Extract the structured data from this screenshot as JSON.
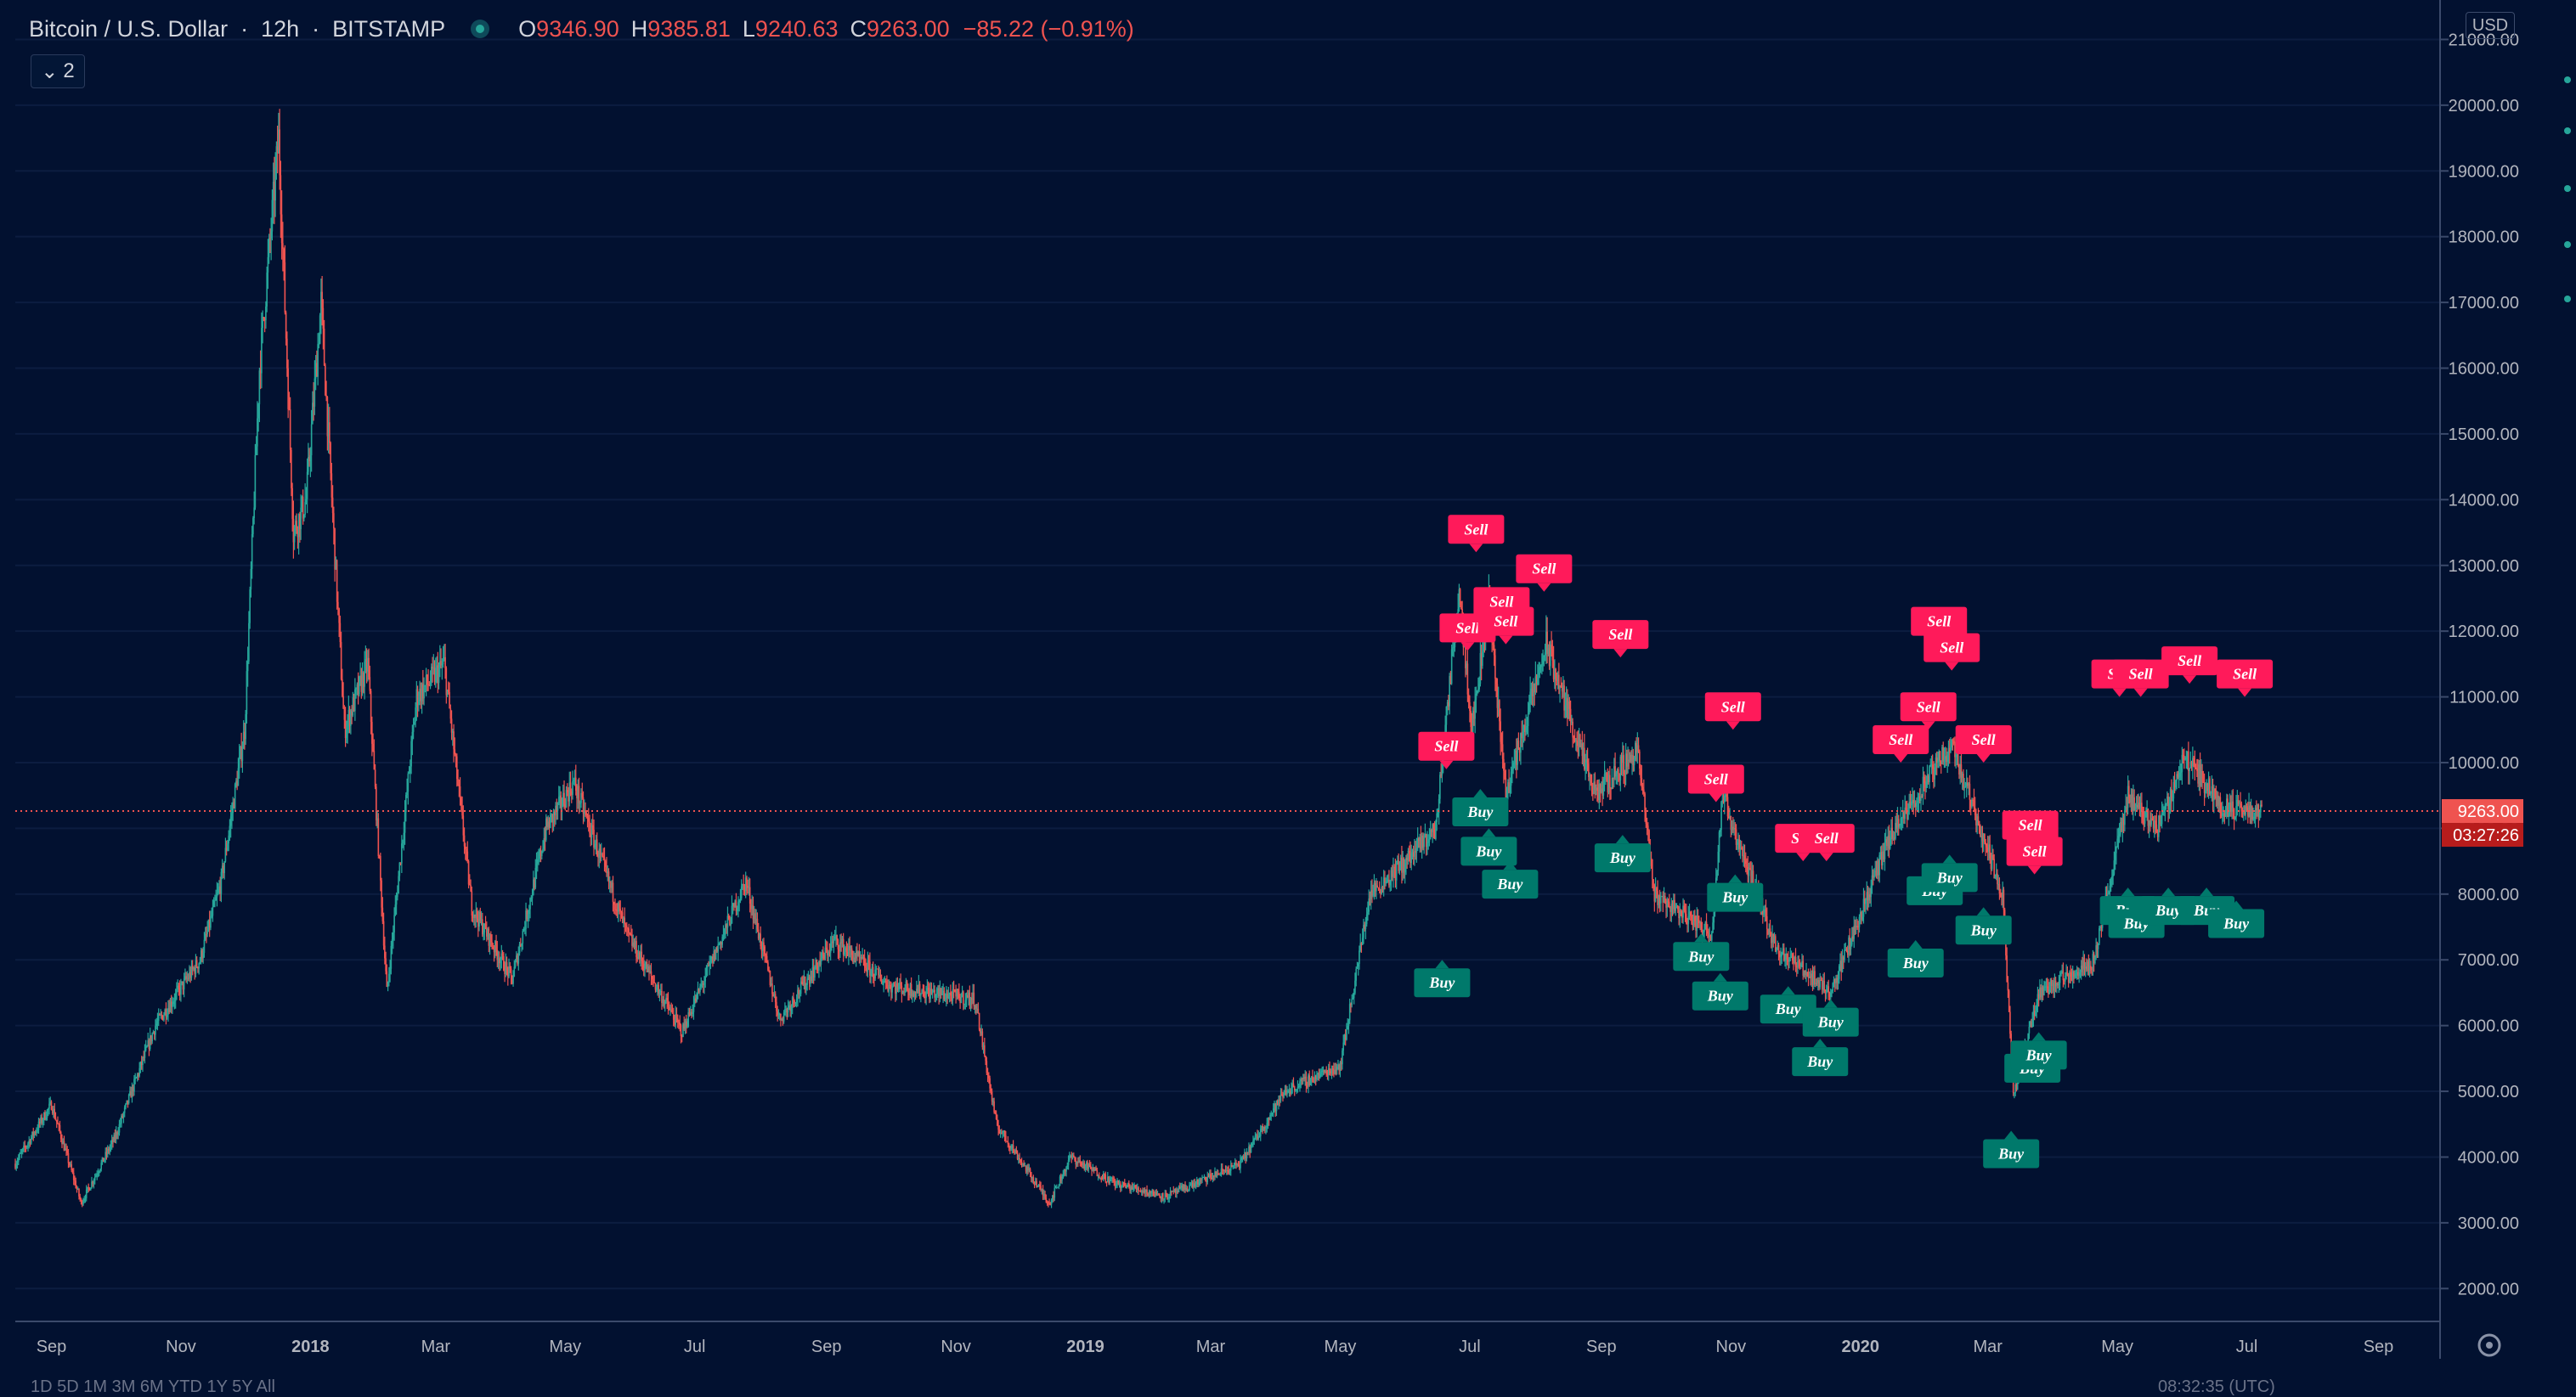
{
  "header": {
    "symbol": "Bitcoin / U.S. Dollar",
    "interval": "12h",
    "exchange": "BITSTAMP",
    "open_label": "O",
    "open": "9346.90",
    "high_label": "H",
    "high": "9385.81",
    "low_label": "L",
    "low": "9240.63",
    "close_label": "C",
    "close": "9263.00",
    "change": "−85.22 (−0.91%)"
  },
  "studies_toggle": {
    "icon": "chevron-down-icon",
    "count": "2"
  },
  "currency": "USD",
  "price_axis": {
    "ticks": [
      "21000.00",
      "20000.00",
      "19000.00",
      "18000.00",
      "17000.00",
      "16000.00",
      "15000.00",
      "14000.00",
      "13000.00",
      "12000.00",
      "11000.00",
      "10000.00",
      "9000.00",
      "8000.00",
      "7000.00",
      "6000.00",
      "5000.00",
      "4000.00",
      "3000.00",
      "2000.00"
    ],
    "last_price": "9263.00",
    "countdown": "03:27:26"
  },
  "time_axis": {
    "ticks": [
      "Sep",
      "Nov",
      "2018",
      "Mar",
      "May",
      "Jul",
      "Sep",
      "Nov",
      "2019",
      "Mar",
      "May",
      "Jul",
      "Sep",
      "Nov",
      "2020",
      "Mar",
      "May",
      "Jul",
      "Sep"
    ],
    "bold_ticks": [
      "2018",
      "2019",
      "2020"
    ]
  },
  "bottom_toolbar": "1D  5D  1M  3M  6M  YTD  1Y  5Y  All",
  "clock": "08:32:35 (UTC)",
  "colors": {
    "up": "#26a69a",
    "down": "#ef5350",
    "background": "#021130",
    "sell": "#ff1a5a",
    "buy": "#00796b",
    "price_line": "#ef5350"
  },
  "chart_data": {
    "type": "candlestick",
    "title": "Bitcoin / U.S. Dollar",
    "interval": "12h",
    "ylim": [
      1500,
      21600
    ],
    "x_range": [
      "2017-08-15",
      "2020-09-30"
    ],
    "path": [
      [
        "2017-08-15",
        3900
      ],
      [
        "2017-09-01",
        4800
      ],
      [
        "2017-09-15",
        3300
      ],
      [
        "2017-10-01",
        4300
      ],
      [
        "2017-10-20",
        6000
      ],
      [
        "2017-11-10",
        7000
      ],
      [
        "2017-11-20",
        8200
      ],
      [
        "2017-12-01",
        10500
      ],
      [
        "2017-12-08",
        16000
      ],
      [
        "2017-12-17",
        19500
      ],
      [
        "2017-12-24",
        13500
      ],
      [
        "2017-12-30",
        14000
      ],
      [
        "2018-01-06",
        17000
      ],
      [
        "2018-01-17",
        10500
      ],
      [
        "2018-01-28",
        11500
      ],
      [
        "2018-02-06",
        6500
      ],
      [
        "2018-02-20",
        11000
      ],
      [
        "2018-03-05",
        11500
      ],
      [
        "2018-03-18",
        7800
      ],
      [
        "2018-04-06",
        6700
      ],
      [
        "2018-04-22",
        9000
      ],
      [
        "2018-05-05",
        9700
      ],
      [
        "2018-05-30",
        7400
      ],
      [
        "2018-06-25",
        5900
      ],
      [
        "2018-07-25",
        8200
      ],
      [
        "2018-08-10",
        6100
      ],
      [
        "2018-09-05",
        7300
      ],
      [
        "2018-10-01",
        6600
      ],
      [
        "2018-11-10",
        6400
      ],
      [
        "2018-11-20",
        4500
      ],
      [
        "2018-12-15",
        3300
      ],
      [
        "2018-12-25",
        4000
      ],
      [
        "2019-01-15",
        3600
      ],
      [
        "2019-02-08",
        3400
      ],
      [
        "2019-03-15",
        3900
      ],
      [
        "2019-04-05",
        5000
      ],
      [
        "2019-05-01",
        5400
      ],
      [
        "2019-05-15",
        8000
      ],
      [
        "2019-06-01",
        8500
      ],
      [
        "2019-06-15",
        9000
      ],
      [
        "2019-06-26",
        12700
      ],
      [
        "2019-07-02",
        10500
      ],
      [
        "2019-07-10",
        12500
      ],
      [
        "2019-07-18",
        9500
      ],
      [
        "2019-08-06",
        11800
      ],
      [
        "2019-08-29",
        9500
      ],
      [
        "2019-09-18",
        10200
      ],
      [
        "2019-09-26",
        8000
      ],
      [
        "2019-10-23",
        7400
      ],
      [
        "2019-10-28",
        9500
      ],
      [
        "2019-11-22",
        7200
      ],
      [
        "2019-12-18",
        6500
      ],
      [
        "2020-01-14",
        8800
      ],
      [
        "2020-02-13",
        10300
      ],
      [
        "2020-03-08",
        8000
      ],
      [
        "2020-03-13",
        4900
      ],
      [
        "2020-03-25",
        6500
      ],
      [
        "2020-04-20",
        7000
      ],
      [
        "2020-05-06",
        9500
      ],
      [
        "2020-05-20",
        9000
      ],
      [
        "2020-06-02",
        10100
      ],
      [
        "2020-06-20",
        9300
      ],
      [
        "2020-07-08",
        9263
      ]
    ],
    "signals": [
      {
        "label": "Buy",
        "date": "2019-06-18",
        "price": 7000
      },
      {
        "label": "Sell",
        "date": "2019-06-20",
        "price": 9900
      },
      {
        "label": "Sell",
        "date": "2019-06-30",
        "price": 11700
      },
      {
        "label": "Sell",
        "date": "2019-07-04",
        "price": 13200
      },
      {
        "label": "Buy",
        "date": "2019-07-06",
        "price": 9600
      },
      {
        "label": "Buy",
        "date": "2019-07-10",
        "price": 9000
      },
      {
        "label": "Sell",
        "date": "2019-07-16",
        "price": 12100
      },
      {
        "label": "Sell",
        "date": "2019-07-18",
        "price": 11800
      },
      {
        "label": "Buy",
        "date": "2019-07-20",
        "price": 8500
      },
      {
        "label": "Sell",
        "date": "2019-08-05",
        "price": 12600
      },
      {
        "label": "Sell",
        "date": "2019-09-10",
        "price": 11600
      },
      {
        "label": "Buy",
        "date": "2019-09-11",
        "price": 8900
      },
      {
        "label": "Sell",
        "date": "2019-10-25",
        "price": 9400
      },
      {
        "label": "Buy",
        "date": "2019-10-18",
        "price": 7400
      },
      {
        "label": "Buy",
        "date": "2019-10-27",
        "price": 6800
      },
      {
        "label": "Sell",
        "date": "2019-11-02",
        "price": 10500
      },
      {
        "label": "Buy",
        "date": "2019-11-03",
        "price": 8300
      },
      {
        "label": "Buy",
        "date": "2019-11-28",
        "price": 6600
      },
      {
        "label": "Sell",
        "date": "2019-12-05",
        "price": 8500
      },
      {
        "label": "Buy",
        "date": "2019-12-13",
        "price": 5800
      },
      {
        "label": "Sell",
        "date": "2019-12-16",
        "price": 8500
      },
      {
        "label": "Buy",
        "date": "2019-12-18",
        "price": 6400
      },
      {
        "label": "Sell",
        "date": "2020-01-20",
        "price": 10000
      },
      {
        "label": "Buy",
        "date": "2020-01-27",
        "price": 7300
      },
      {
        "label": "Sell",
        "date": "2020-02-02",
        "price": 10500
      },
      {
        "label": "Buy",
        "date": "2020-02-05",
        "price": 8400
      },
      {
        "label": "Sell",
        "date": "2020-02-07",
        "price": 11800
      },
      {
        "label": "Sell",
        "date": "2020-02-13",
        "price": 11400
      },
      {
        "label": "Buy",
        "date": "2020-02-12",
        "price": 8600
      },
      {
        "label": "Buy",
        "date": "2020-02-28",
        "price": 7800
      },
      {
        "label": "Sell",
        "date": "2020-02-28",
        "price": 10000
      },
      {
        "label": "Buy",
        "date": "2020-03-12",
        "price": 4400
      },
      {
        "label": "Sell",
        "date": "2020-03-21",
        "price": 8700
      },
      {
        "label": "Sell",
        "date": "2020-03-23",
        "price": 8300
      },
      {
        "label": "Buy",
        "date": "2020-03-22",
        "price": 5700
      },
      {
        "label": "Buy",
        "date": "2020-03-25",
        "price": 5900
      },
      {
        "label": "Sell",
        "date": "2020-05-02",
        "price": 11000
      },
      {
        "label": "Buy",
        "date": "2020-05-06",
        "price": 8100
      },
      {
        "label": "Buy",
        "date": "2020-05-10",
        "price": 7900
      },
      {
        "label": "Sell",
        "date": "2020-05-12",
        "price": 11000
      },
      {
        "label": "Buy",
        "date": "2020-05-25",
        "price": 8100
      },
      {
        "label": "Sell",
        "date": "2020-06-04",
        "price": 11200
      },
      {
        "label": "Buy",
        "date": "2020-06-12",
        "price": 8100
      },
      {
        "label": "Buy",
        "date": "2020-06-26",
        "price": 7900
      },
      {
        "label": "Sell",
        "date": "2020-06-30",
        "price": 11000
      }
    ]
  }
}
